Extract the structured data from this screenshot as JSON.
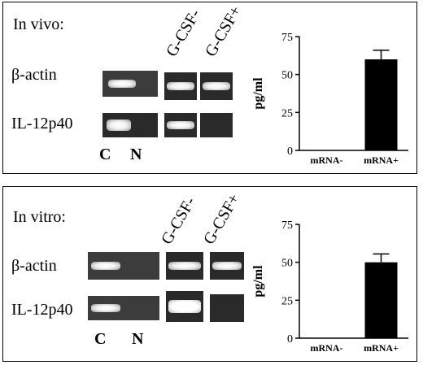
{
  "panels": [
    {
      "title": "In vivo:",
      "rows": [
        "β-actin",
        "IL-12p40"
      ],
      "lanes": [
        "C",
        "N"
      ],
      "conditions": [
        "G-CSF-",
        "G-CSF+"
      ]
    },
    {
      "title": "In vitro:",
      "rows": [
        "β-actin",
        "IL-12p40"
      ],
      "lanes": [
        "C",
        "N"
      ],
      "conditions": [
        "G-CSF-",
        "G-CSF+"
      ]
    }
  ],
  "chart_data": [
    {
      "type": "bar",
      "categories": [
        "mRNA-",
        "mRNA+"
      ],
      "values": [
        0,
        60
      ],
      "error": [
        0,
        6
      ],
      "title": "",
      "xlabel": "",
      "ylabel": "pg/ml",
      "ylim": [
        0,
        75
      ],
      "yticks": [
        "0",
        "25",
        "50",
        "75"
      ],
      "grid": false,
      "bar_color": "#000000"
    },
    {
      "type": "bar",
      "categories": [
        "mRNA-",
        "mRNA+"
      ],
      "values": [
        0,
        50
      ],
      "error": [
        0,
        5.5
      ],
      "title": "",
      "xlabel": "",
      "ylabel": "pg/ml",
      "ylim": [
        0,
        75
      ],
      "yticks": [
        "0",
        "25",
        "50",
        "75"
      ],
      "grid": false,
      "bar_color": "#000000"
    }
  ]
}
